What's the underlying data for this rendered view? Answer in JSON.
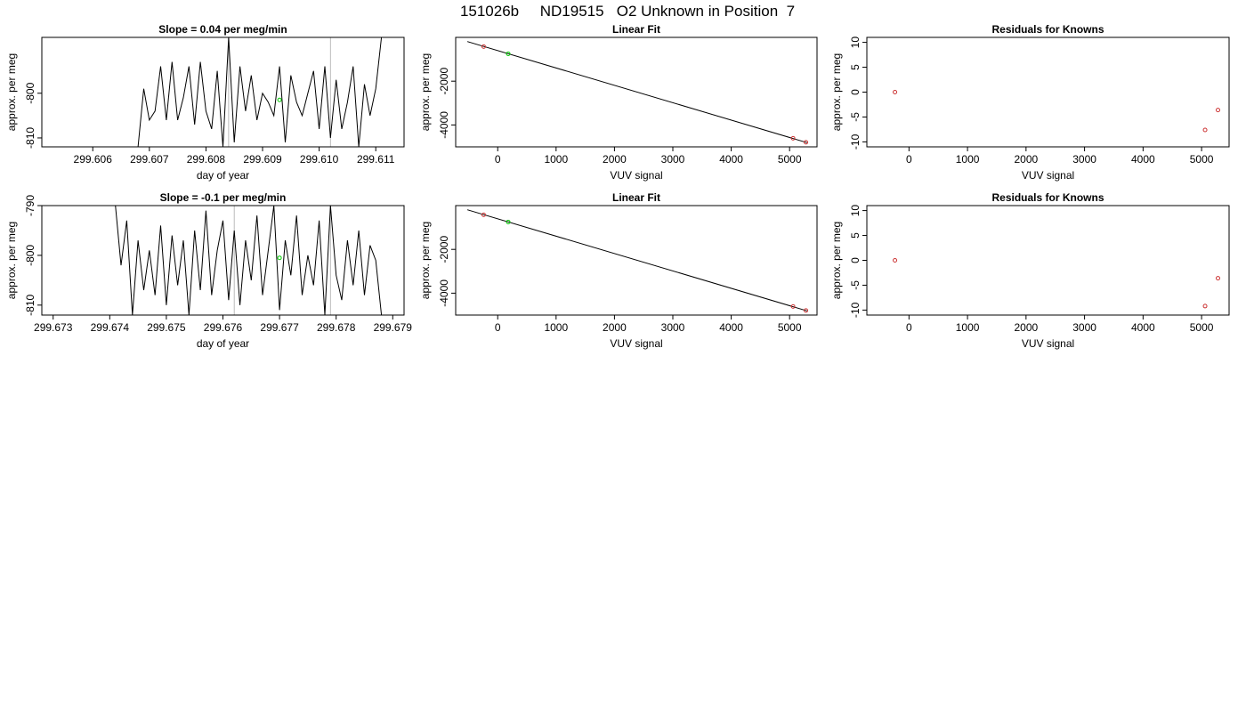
{
  "page": {
    "title": "151026b     ND19515   O2 Unknown in Position  7"
  },
  "chart_data": [
    {
      "id": "p1",
      "type": "line",
      "title": "Slope =  0.04  per meg/min",
      "xlabel": "day of year",
      "ylabel": "approx. per meg",
      "xlim": [
        299.6051,
        299.6115
      ],
      "ylim": [
        -812,
        -787.5
      ],
      "xticks": [
        299.606,
        299.607,
        299.608,
        299.609,
        299.61,
        299.611
      ],
      "xtick_labels": [
        "299.606",
        "299.607",
        "299.608",
        "299.609",
        "299.610",
        "299.611"
      ],
      "yticks": [
        -800,
        -810
      ],
      "ytick_labels": [
        "-800",
        "-810"
      ],
      "vlines": [
        299.6084,
        299.6102
      ],
      "series": [
        {
          "kind": "line",
          "x": [
            299.6068,
            299.6069,
            299.607,
            299.6071,
            299.6072,
            299.6073,
            299.6074,
            299.6075,
            299.6076,
            299.6077,
            299.6078,
            299.6079,
            299.608,
            299.6081,
            299.6082,
            299.6083,
            299.6084,
            299.6085,
            299.6086,
            299.6087,
            299.6088,
            299.6089,
            299.609,
            299.6091,
            299.6092,
            299.6093,
            299.6094,
            299.6095,
            299.6096,
            299.6097,
            299.6098,
            299.6099,
            299.61,
            299.6101,
            299.6102,
            299.6103,
            299.6104,
            299.6105,
            299.6106,
            299.6107,
            299.6108,
            299.6109,
            299.611,
            299.6111
          ],
          "y": [
            -812,
            -799,
            -806,
            -804,
            -794,
            -806,
            -793,
            -806,
            -801,
            -794,
            -807,
            -793,
            -804,
            -808,
            -795,
            -812,
            -787.5,
            -811,
            -794,
            -804,
            -796,
            -806,
            -800,
            -802,
            -805,
            -794,
            -811,
            -796,
            -802,
            -805,
            -800,
            -795,
            -808,
            -794,
            -810,
            -797,
            -808,
            -802,
            -794,
            -812,
            -798,
            -805,
            -799,
            -787.5
          ]
        },
        {
          "kind": "points",
          "color": "#00cc00",
          "x": [
            299.6093
          ],
          "y": [
            -801.5
          ]
        }
      ]
    },
    {
      "id": "p2",
      "type": "scatter",
      "title": "Linear Fit",
      "xlabel": "VUV signal",
      "ylabel": "approx. per meg",
      "xlim": [
        -720,
        5470
      ],
      "ylim": [
        -5000,
        0
      ],
      "xticks": [
        0,
        1000,
        2000,
        3000,
        4000,
        5000
      ],
      "xtick_labels": [
        "0",
        "1000",
        "2000",
        "3000",
        "4000",
        "5000"
      ],
      "yticks": [
        -2000,
        -4000
      ],
      "ytick_labels": [
        "-2000",
        "-4000"
      ],
      "series": [
        {
          "kind": "line",
          "x": [
            -520,
            5300
          ],
          "y": [
            -190,
            -4810
          ]
        },
        {
          "kind": "points",
          "color": "#cc3333",
          "x": [
            -240,
            5060,
            5280
          ],
          "y": [
            -420,
            -4610,
            -4790
          ]
        },
        {
          "kind": "points",
          "color": "#00cc00",
          "x": [
            180
          ],
          "y": [
            -750
          ]
        }
      ]
    },
    {
      "id": "p3",
      "type": "scatter",
      "title": "Residuals for Knowns",
      "xlabel": "VUV signal",
      "ylabel": "approx. per meg",
      "xlim": [
        -720,
        5470
      ],
      "ylim": [
        -11,
        11
      ],
      "xticks": [
        0,
        1000,
        2000,
        3000,
        4000,
        5000
      ],
      "xtick_labels": [
        "0",
        "1000",
        "2000",
        "3000",
        "4000",
        "5000"
      ],
      "yticks": [
        10,
        5,
        0,
        -5,
        -10
      ],
      "ytick_labels": [
        "10",
        "5",
        "0",
        "-5",
        "-10"
      ],
      "series": [
        {
          "kind": "points",
          "color": "#cc3333",
          "x": [
            -240,
            5060,
            5280
          ],
          "y": [
            0,
            -7.6,
            -3.6
          ]
        }
      ]
    },
    {
      "id": "p4",
      "type": "line",
      "title": "Slope =  -0.1  per meg/min",
      "xlabel": "day of year",
      "ylabel": "approx. per meg",
      "xlim": [
        299.6728,
        299.6792
      ],
      "ylim": [
        -812,
        -790
      ],
      "xticks": [
        299.673,
        299.674,
        299.675,
        299.676,
        299.677,
        299.678,
        299.679
      ],
      "xtick_labels": [
        "299.673",
        "299.674",
        "299.675",
        "299.676",
        "299.677",
        "299.678",
        "299.679"
      ],
      "yticks": [
        -790,
        -800,
        -810
      ],
      "ytick_labels": [
        "-790",
        "-800",
        "-810"
      ],
      "vlines": [
        299.6762,
        299.6779
      ],
      "series": [
        {
          "kind": "line",
          "x": [
            299.6741,
            299.6742,
            299.6743,
            299.6744,
            299.6745,
            299.6746,
            299.6747,
            299.6748,
            299.6749,
            299.675,
            299.6751,
            299.6752,
            299.6753,
            299.6754,
            299.6755,
            299.6756,
            299.6757,
            299.6758,
            299.6759,
            299.676,
            299.6761,
            299.6762,
            299.6763,
            299.6764,
            299.6765,
            299.6766,
            299.6767,
            299.6768,
            299.6769,
            299.677,
            299.6771,
            299.6772,
            299.6773,
            299.6774,
            299.6775,
            299.6776,
            299.6777,
            299.6778,
            299.6779,
            299.678,
            299.6781,
            299.6782,
            299.6783,
            299.6784,
            299.6785,
            299.6786,
            299.6787,
            299.6788
          ],
          "y": [
            -790,
            -802,
            -793,
            -812,
            -797,
            -807,
            -799,
            -808,
            -794,
            -810,
            -796,
            -806,
            -797,
            -812,
            -795,
            -807,
            -791,
            -808,
            -799,
            -793,
            -809,
            -795,
            -810,
            -797,
            -805,
            -792,
            -808,
            -799,
            -790,
            -811,
            -797,
            -804,
            -792,
            -808,
            -800,
            -806,
            -793,
            -812,
            -790,
            -804,
            -809,
            -797,
            -806,
            -795,
            -808,
            -798,
            -801,
            -812
          ]
        },
        {
          "kind": "points",
          "color": "#00cc00",
          "x": [
            299.677
          ],
          "y": [
            -800.5
          ]
        }
      ]
    },
    {
      "id": "p5",
      "type": "scatter",
      "title": "Linear Fit",
      "xlabel": "VUV signal",
      "ylabel": "approx. per meg",
      "xlim": [
        -720,
        5470
      ],
      "ylim": [
        -5000,
        0
      ],
      "xticks": [
        0,
        1000,
        2000,
        3000,
        4000,
        5000
      ],
      "xtick_labels": [
        "0",
        "1000",
        "2000",
        "3000",
        "4000",
        "5000"
      ],
      "yticks": [
        -2000,
        -4000
      ],
      "ytick_labels": [
        "-2000",
        "-4000"
      ],
      "series": [
        {
          "kind": "line",
          "x": [
            -520,
            5300
          ],
          "y": [
            -190,
            -4810
          ]
        },
        {
          "kind": "points",
          "color": "#cc3333",
          "x": [
            -240,
            5060,
            5280
          ],
          "y": [
            -420,
            -4610,
            -4790
          ]
        },
        {
          "kind": "points",
          "color": "#00cc00",
          "x": [
            180
          ],
          "y": [
            -750
          ]
        }
      ]
    },
    {
      "id": "p6",
      "type": "scatter",
      "title": "Residuals for Knowns",
      "xlabel": "VUV signal",
      "ylabel": "approx. per meg",
      "xlim": [
        -720,
        5470
      ],
      "ylim": [
        -11,
        11
      ],
      "xticks": [
        0,
        1000,
        2000,
        3000,
        4000,
        5000
      ],
      "xtick_labels": [
        "0",
        "1000",
        "2000",
        "3000",
        "4000",
        "5000"
      ],
      "yticks": [
        10,
        5,
        0,
        -5,
        -10
      ],
      "ytick_labels": [
        "10",
        "5",
        "0",
        "-5",
        "-10"
      ],
      "series": [
        {
          "kind": "points",
          "color": "#cc3333",
          "x": [
            -240,
            5060,
            5280
          ],
          "y": [
            0,
            -9.2,
            -3.6
          ]
        }
      ]
    }
  ]
}
